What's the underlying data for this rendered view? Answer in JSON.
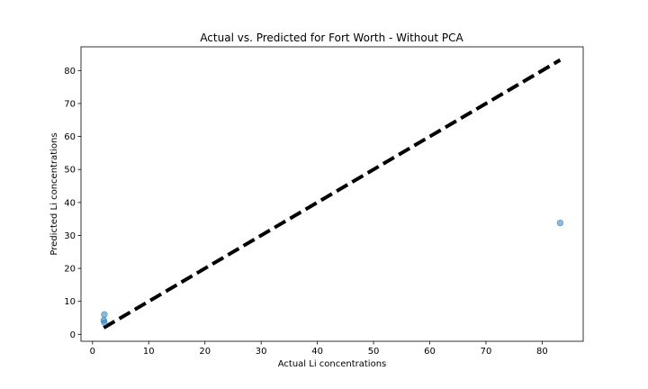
{
  "chart_data": {
    "type": "scatter",
    "title": "Actual vs. Predicted for Fort Worth - Without PCA",
    "xlabel": "Actual Li concentrations",
    "ylabel": "Predicted Li concentrations",
    "xlim": [
      -2.05,
      87.3
    ],
    "ylim": [
      -2.1,
      87.2
    ],
    "xticks": [
      0,
      10,
      20,
      30,
      40,
      50,
      60,
      70,
      80
    ],
    "yticks": [
      0,
      10,
      20,
      30,
      40,
      50,
      60,
      70,
      80
    ],
    "grid": false,
    "series": [
      {
        "kind": "scatter",
        "color": "#1f77b4",
        "alpha": 0.5,
        "points": [
          {
            "x": 2.1,
            "y": 6.0
          },
          {
            "x": 2.0,
            "y": 4.3
          },
          {
            "x": 2.1,
            "y": 3.6
          },
          {
            "x": 83.2,
            "y": 33.8
          }
        ]
      },
      {
        "kind": "reference-line",
        "style": "dashed",
        "color": "#000000",
        "points": [
          {
            "x": 2.0,
            "y": 2.0
          },
          {
            "x": 83.2,
            "y": 83.2
          }
        ]
      }
    ]
  }
}
